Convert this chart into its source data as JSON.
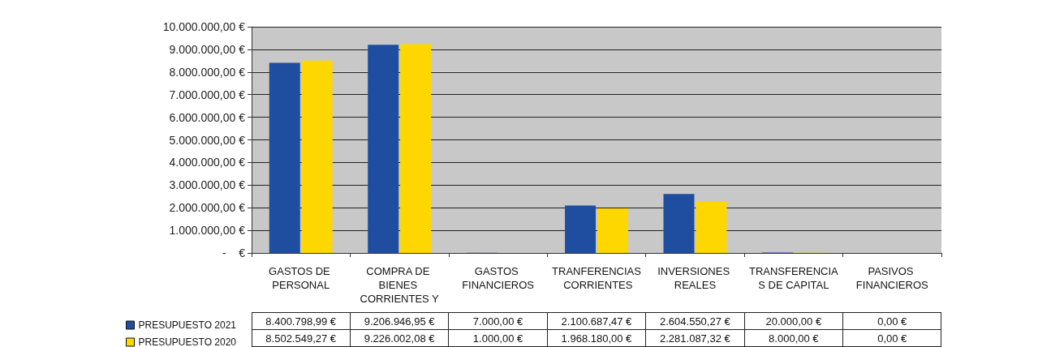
{
  "chart_data": {
    "type": "bar",
    "categories": [
      "GASTOS DE PERSONAL",
      "COMPRA DE BIENES CORRIENTES Y",
      "GASTOS FINANCIEROS",
      "TRANFERENCIAS CORRIENTES",
      "INVERSIONES REALES",
      "TRANSFERENCIAS DE CAPITAL",
      "PASIVOS FINANCIEROS"
    ],
    "series": [
      {
        "name": "PRESUPUESTO 2021",
        "color": "#1f4ea0",
        "values": [
          8400798.99,
          9206946.95,
          7000,
          2100687.47,
          2604550.27,
          20000,
          0
        ],
        "value_labels": [
          "8.400.798,99 €",
          "9.206.946,95 €",
          "7.000,00 €",
          "2.100.687,47 €",
          "2.604.550,27 €",
          "20.000,00 €",
          "0,00 €"
        ]
      },
      {
        "name": "PRESUPUESTO 2020",
        "color": "#ffd700",
        "values": [
          8502549.27,
          9226002.08,
          1000,
          1968180,
          2281087.32,
          8000,
          0
        ],
        "value_labels": [
          "8.502.549,27 €",
          "9.226.002,08 €",
          "1.000,00 €",
          "1.968.180,00 €",
          "2.281.087,32 €",
          "8.000,00 €",
          "0,00 €"
        ]
      }
    ],
    "ylim": [
      0,
      10000000
    ],
    "yticks": [
      {
        "value": 0,
        "label": "-    €"
      },
      {
        "value": 1000000,
        "label": "1.000.000,00 €"
      },
      {
        "value": 2000000,
        "label": "2.000.000,00 €"
      },
      {
        "value": 3000000,
        "label": "3.000.000,00 €"
      },
      {
        "value": 4000000,
        "label": "4.000.000,00 €"
      },
      {
        "value": 5000000,
        "label": "5.000.000,00 €"
      },
      {
        "value": 6000000,
        "label": "6.000.000,00 €"
      },
      {
        "value": 7000000,
        "label": "7.000.000,00 €"
      },
      {
        "value": 8000000,
        "label": "8.000.000,00 €"
      },
      {
        "value": 9000000,
        "label": "9.000.000,00 €"
      },
      {
        "value": 10000000,
        "label": "10.000.000,00 €"
      }
    ],
    "grid": "y",
    "legend": "bottom left"
  }
}
